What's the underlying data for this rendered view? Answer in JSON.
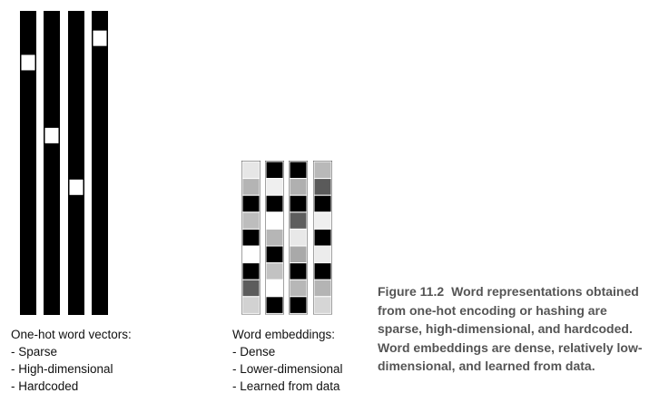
{
  "onehot": {
    "title": "One-hot word vectors:",
    "items": [
      "- Sparse",
      "- High-dimensional",
      "- Hardcoded"
    ],
    "hot_fractions": [
      0.17,
      0.41,
      0.58,
      0.09
    ]
  },
  "embeddings": {
    "title": "Word embeddings:",
    "items": [
      "- Dense",
      "- Lower-dimensional",
      "- Learned from data"
    ],
    "columns": [
      [
        "#e6e6e6",
        "#b4b4b4",
        "#000000",
        "#bdbdbd",
        "#000000",
        "#ffffff",
        "#000000",
        "#5c5c5c",
        "#d2d2d2"
      ],
      [
        "#000000",
        "#efefef",
        "#000000",
        "#ffffff",
        "#b6b6b6",
        "#000000",
        "#c2c2c2",
        "#ffffff",
        "#000000"
      ],
      [
        "#000000",
        "#b0b0b0",
        "#000000",
        "#5e5e5e",
        "#e8e8e8",
        "#a9a9a9",
        "#000000",
        "#b7b7b7",
        "#000000"
      ],
      [
        "#b9b9b9",
        "#5a5a5a",
        "#000000",
        "#efefef",
        "#000000",
        "#ececec",
        "#000000",
        "#b4b4b4",
        "#d6d6d6"
      ]
    ]
  },
  "caption": {
    "figure_number": "Figure 11.2",
    "text": "Word representations obtained from one-hot encoding or hashing are sparse, high-dimensional, and hardcoded. Word embeddings are dense, relatively low-dimensional, and learned from data."
  }
}
